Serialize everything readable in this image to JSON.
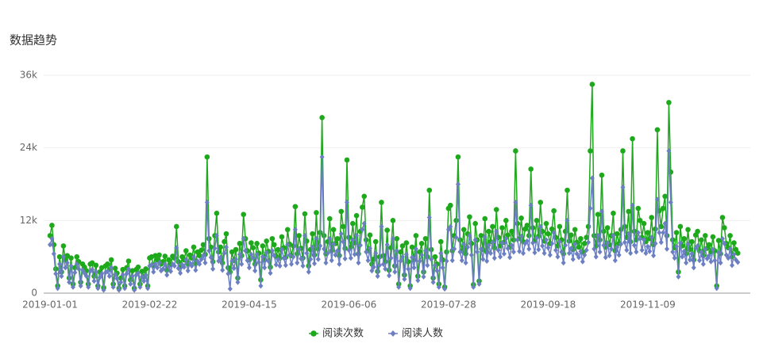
{
  "chart_data": {
    "type": "line",
    "title": "数据趋势",
    "categories": [
      "2019-01-01",
      null,
      null,
      null,
      null,
      null,
      null,
      null,
      null,
      null,
      null,
      null,
      null,
      null,
      null,
      null,
      null,
      null,
      null,
      null,
      null,
      null,
      null,
      null,
      null,
      null,
      null,
      null,
      null,
      null,
      null,
      null,
      null,
      null,
      null,
      null,
      null,
      null,
      null,
      null,
      null,
      null,
      null,
      null,
      null,
      null,
      null,
      null,
      null,
      null,
      null,
      null,
      "2019-02-22",
      null,
      null,
      null,
      null,
      null,
      null,
      null,
      null,
      null,
      null,
      null,
      null,
      null,
      null,
      null,
      null,
      null,
      null,
      null,
      null,
      null,
      null,
      null,
      null,
      null,
      null,
      null,
      null,
      null,
      null,
      null,
      null,
      null,
      null,
      null,
      null,
      null,
      null,
      null,
      null,
      null,
      null,
      null,
      null,
      null,
      null,
      null,
      null,
      null,
      null,
      null,
      "2019-04-15",
      null,
      null,
      null,
      null,
      null,
      null,
      null,
      null,
      null,
      null,
      null,
      null,
      null,
      null,
      null,
      null,
      null,
      null,
      null,
      null,
      null,
      null,
      null,
      null,
      null,
      null,
      null,
      null,
      null,
      null,
      null,
      null,
      null,
      null,
      null,
      null,
      null,
      null,
      null,
      null,
      null,
      null,
      null,
      null,
      null,
      null,
      null,
      null,
      null,
      null,
      null,
      "2019-06-06",
      null,
      null,
      null,
      null,
      null,
      null,
      null,
      null,
      null,
      null,
      null,
      null,
      null,
      null,
      null,
      null,
      null,
      null,
      null,
      null,
      null,
      null,
      null,
      null,
      null,
      null,
      null,
      null,
      null,
      null,
      null,
      null,
      null,
      null,
      null,
      null,
      null,
      null,
      null,
      null,
      null,
      null,
      null,
      null,
      null,
      null,
      null,
      null,
      null,
      null,
      null,
      "2019-07-28",
      null,
      null,
      null,
      null,
      null,
      null,
      null,
      null,
      null,
      null,
      null,
      null,
      null,
      null,
      null,
      null,
      null,
      null,
      null,
      null,
      null,
      null,
      null,
      null,
      null,
      null,
      null,
      null,
      null,
      null,
      null,
      null,
      null,
      null,
      null,
      null,
      null,
      null,
      null,
      null,
      null,
      null,
      null,
      null,
      null,
      null,
      null,
      null,
      null,
      null,
      null,
      "2019-09-18",
      null,
      null,
      null,
      null,
      null,
      null,
      null,
      null,
      null,
      null,
      null,
      null,
      null,
      null,
      null,
      null,
      null,
      null,
      null,
      null,
      null,
      null,
      null,
      null,
      null,
      null,
      null,
      null,
      null,
      null,
      null,
      null,
      null,
      null,
      null,
      null,
      null,
      null,
      null,
      null,
      null,
      null,
      null,
      null,
      null,
      null,
      null,
      null,
      null,
      null,
      null,
      "2019-11-09",
      null,
      null,
      null,
      null,
      null,
      null,
      null,
      null,
      null,
      null,
      null,
      null,
      null,
      null,
      null,
      null,
      null,
      null,
      null,
      null,
      null,
      null,
      null,
      null,
      null,
      null,
      null,
      null,
      null,
      null,
      null,
      null,
      null,
      null,
      null,
      null,
      null,
      null,
      null,
      null,
      null,
      null,
      null,
      null,
      null,
      null,
      null
    ],
    "series": [
      {
        "name": "阅读次数",
        "color": "#1ea91d",
        "marker": "circle",
        "values": [
          9500,
          11200,
          8000,
          4000,
          1200,
          6000,
          3500,
          7800,
          5500,
          6200,
          2500,
          5800,
          1500,
          4200,
          6000,
          5200,
          1800,
          4800,
          4300,
          3700,
          1500,
          4800,
          5000,
          2800,
          4600,
          1200,
          3500,
          4200,
          900,
          4500,
          4800,
          3900,
          5500,
          1500,
          4100,
          3300,
          800,
          2500,
          3900,
          1200,
          4200,
          5300,
          2200,
          3700,
          800,
          3900,
          4300,
          1500,
          3600,
          2700,
          4000,
          1200,
          5800,
          6000,
          4500,
          6200,
          5500,
          6300,
          4800,
          5200,
          6100,
          3800,
          5500,
          4700,
          6100,
          5800,
          11000,
          5200,
          4300,
          6000,
          5500,
          7000,
          4800,
          6300,
          5800,
          7600,
          4900,
          6800,
          6200,
          7100,
          8000,
          6400,
          22500,
          9000,
          7600,
          5200,
          9500,
          13200,
          6800,
          7600,
          5000,
          8500,
          9800,
          4200,
          3500,
          6800,
          5400,
          7200,
          2500,
          8200,
          6200,
          13000,
          9000,
          7000,
          5500,
          8300,
          7500,
          4800,
          8200,
          6600,
          2200,
          7800,
          5500,
          8600,
          6900,
          4300,
          9000,
          8000,
          6100,
          7200,
          5800,
          9300,
          7500,
          5900,
          10500,
          8100,
          6200,
          7800,
          14300,
          6500,
          9500,
          7400,
          5800,
          13100,
          8600,
          4500,
          7200,
          9800,
          6300,
          13300,
          7300,
          10000,
          29000,
          9500,
          6500,
          8500,
          12300,
          7000,
          10500,
          8200,
          9000,
          6200,
          13500,
          11000,
          7400,
          22000,
          9200,
          7600,
          11500,
          8300,
          12800,
          6500,
          10200,
          14200,
          16000,
          8800,
          7000,
          9600,
          4800,
          5600,
          8500,
          3600,
          6000,
          15000,
          6200,
          5200,
          10400,
          3800,
          7500,
          12000,
          4500,
          9000,
          1500,
          6800,
          7800,
          3000,
          8300,
          5200,
          1200,
          7600,
          5500,
          9500,
          2800,
          6800,
          8200,
          3500,
          9000,
          6000,
          17000,
          7200,
          2500,
          6000,
          4800,
          1500,
          8500,
          5500,
          1000,
          6800,
          14000,
          14500,
          7000,
          9500,
          12000,
          22500,
          8800,
          7000,
          10500,
          6500,
          9800,
          12600,
          8200,
          1400,
          11500,
          8800,
          2000,
          9500,
          7200,
          12300,
          6800,
          10200,
          8500,
          11000,
          7500,
          13800,
          9200,
          7800,
          10800,
          8400,
          12000,
          9600,
          7600,
          10200,
          8800,
          23500,
          11500,
          9000,
          12400,
          8500,
          10600,
          11200,
          9500,
          20500,
          10800,
          8700,
          12000,
          9400,
          15000,
          10200,
          8600,
          11500,
          9800,
          8200,
          10600,
          13600,
          9200,
          7800,
          11000,
          8800,
          6500,
          10200,
          17000,
          8600,
          9600,
          7200,
          10500,
          8400,
          7600,
          9000,
          6800,
          8200,
          9200,
          11000,
          23500,
          34500,
          9500,
          7800,
          13000,
          8800,
          19500,
          10200,
          7600,
          10800,
          8000,
          9500,
          13200,
          7000,
          9800,
          8200,
          10500,
          23500,
          11000,
          9200,
          13500,
          8500,
          25500,
          10200,
          8800,
          14000,
          12000,
          9200,
          11500,
          8500,
          10000,
          9000,
          12500,
          8000,
          10600,
          27000,
          13600,
          11000,
          14000,
          16000,
          9500,
          31500,
          20000,
          8800,
          7500,
          10000,
          3500,
          11000,
          7800,
          9000,
          6500,
          10500,
          7200,
          8500,
          5500,
          9600,
          10200,
          7000,
          8800,
          6200,
          9500,
          7400,
          8000,
          6800,
          9300,
          7000,
          1200,
          8700,
          6500,
          12500,
          10800,
          8200,
          7500,
          9500,
          6000,
          8300,
          7200,
          6600
        ]
      },
      {
        "name": "阅读人数",
        "color": "#6b7fc2",
        "marker": "diamond",
        "values": [
          8000,
          9000,
          6500,
          3200,
          800,
          4800,
          2800,
          6000,
          4200,
          5000,
          1800,
          4500,
          1000,
          3400,
          4800,
          4000,
          1200,
          3800,
          3300,
          2800,
          1000,
          3600,
          3900,
          2000,
          3500,
          800,
          2600,
          3200,
          500,
          3400,
          3600,
          2800,
          4200,
          1000,
          3100,
          2400,
          500,
          1800,
          3000,
          800,
          3200,
          4000,
          1500,
          2800,
          500,
          3000,
          3300,
          1000,
          2700,
          2000,
          3000,
          800,
          4500,
          4700,
          3500,
          4800,
          4200,
          5000,
          3700,
          4000,
          4800,
          3000,
          4300,
          3600,
          4800,
          4500,
          7500,
          4100,
          3300,
          4700,
          4300,
          5500,
          3700,
          5000,
          4500,
          6000,
          3800,
          5300,
          4800,
          5600,
          6200,
          5000,
          15000,
          7000,
          5900,
          4000,
          7400,
          9500,
          5300,
          5900,
          3800,
          6600,
          7600,
          3200,
          700,
          5300,
          4100,
          5600,
          1800,
          6400,
          4800,
          9000,
          7000,
          5400,
          4200,
          6400,
          5800,
          3700,
          6400,
          5100,
          1200,
          6000,
          4200,
          6700,
          5300,
          3300,
          7000,
          6200,
          4700,
          5600,
          4500,
          7200,
          5800,
          4600,
          8000,
          6300,
          4800,
          6000,
          10500,
          5000,
          7300,
          5700,
          4500,
          9500,
          6600,
          3500,
          5600,
          7600,
          4900,
          9000,
          5600,
          7800,
          22500,
          7300,
          5000,
          6600,
          9000,
          5400,
          8100,
          6300,
          7000,
          4800,
          9800,
          8500,
          5700,
          15000,
          7100,
          5800,
          8800,
          6400,
          9500,
          5000,
          7900,
          10500,
          11500,
          6800,
          5400,
          7400,
          3700,
          4300,
          6600,
          2800,
          4600,
          11000,
          4800,
          4000,
          8000,
          2900,
          5800,
          9000,
          3500,
          7000,
          1000,
          5300,
          6000,
          2300,
          6400,
          4000,
          800,
          5900,
          4200,
          7300,
          2100,
          5300,
          6300,
          2700,
          7000,
          4600,
          12500,
          5600,
          1800,
          4600,
          3700,
          1000,
          6600,
          4200,
          700,
          5300,
          10500,
          11000,
          5400,
          7300,
          9200,
          18000,
          6800,
          5400,
          8100,
          5000,
          7600,
          9500,
          6300,
          1000,
          8800,
          6800,
          1500,
          7300,
          5600,
          9300,
          5300,
          7900,
          6600,
          8400,
          5800,
          10200,
          7100,
          6000,
          8300,
          6500,
          9000,
          7400,
          5900,
          7900,
          6800,
          15000,
          8800,
          6900,
          9400,
          6600,
          8200,
          8600,
          7300,
          14500,
          8300,
          6700,
          9100,
          7200,
          11000,
          7800,
          6600,
          8800,
          7500,
          6300,
          8200,
          10000,
          7100,
          6000,
          8500,
          6800,
          5000,
          7900,
          12000,
          6600,
          7400,
          5600,
          8100,
          6500,
          5900,
          6900,
          5200,
          6300,
          7100,
          8400,
          14000,
          19000,
          7300,
          6000,
          9500,
          6800,
          13500,
          7900,
          5900,
          8300,
          6200,
          7300,
          9500,
          5400,
          7600,
          6300,
          8100,
          17500,
          8400,
          7100,
          9800,
          6600,
          14500,
          7900,
          6800,
          10000,
          9000,
          7100,
          8800,
          6600,
          7700,
          6900,
          9200,
          6200,
          8200,
          15500,
          10000,
          8400,
          10000,
          11500,
          7300,
          23500,
          15000,
          6800,
          5800,
          7700,
          2700,
          8300,
          6000,
          6900,
          5000,
          8100,
          5500,
          6500,
          4200,
          7400,
          7800,
          5400,
          6800,
          4800,
          7300,
          5700,
          6200,
          5200,
          7200,
          5400,
          800,
          6700,
          5000,
          9000,
          8200,
          6300,
          5800,
          7300,
          4600,
          6400,
          5500,
          5100
        ]
      }
    ],
    "ylim": [
      0,
      36000
    ],
    "yticks": [
      0,
      {
        "value": 12000,
        "label": "12k"
      },
      {
        "value": 24000,
        "label": "24k"
      },
      {
        "value": 36000,
        "label": "36k"
      }
    ],
    "grid": true,
    "legend": "bottom"
  }
}
